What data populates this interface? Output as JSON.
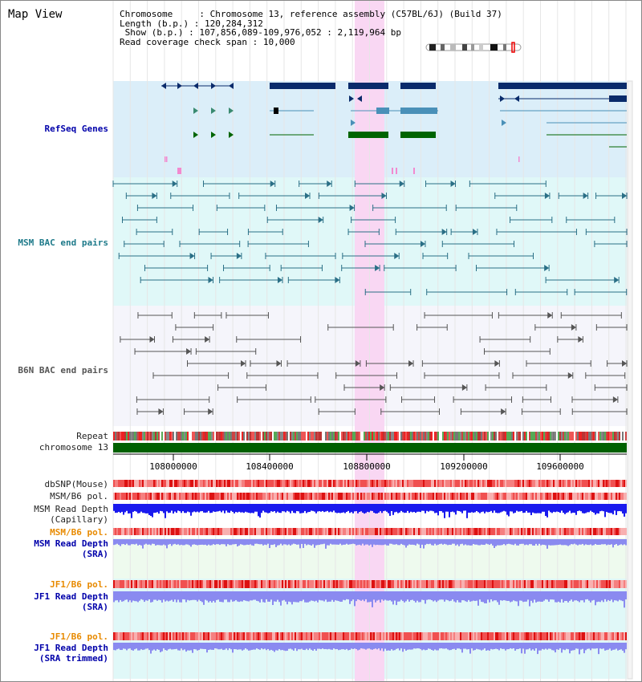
{
  "title": "Map View",
  "info": {
    "chromosome_key": "Chromosome    ",
    "chromosome_val": "Chromosome 13, reference assembly (C57BL/6J) (Build 37)",
    "length_key": "Length (b.p.)",
    "length_val": "120,284,312",
    "show_key": " Show (b.p.)",
    "show_val": "107,856,089-109,976,052 : 2,119,964 bp",
    "coverage_key": "Read coverage check span",
    "coverage_val": "10,000"
  },
  "tracks": {
    "refseq": "RefSeq Genes",
    "msm_bac": "MSM BAC end pairs",
    "b6n_bac": "B6N BAC end pairs",
    "repeat": "Repeat",
    "chromosome": "chromosome 13",
    "dbsnp": "dbSNP(Mouse)",
    "msm_b6_pol_1": "MSM/B6 pol.",
    "msm_depth_cap_1": "MSM Read Depth",
    "msm_depth_cap_2": "(Capillary)",
    "msm_b6_pol_2": "MSM/B6 pol.",
    "msm_depth_sra_1": "MSM Read Depth",
    "msm_depth_sra_2": "(SRA)",
    "jf1_b6_pol_1": "JF1/B6 pol.",
    "jf1_depth_sra_1": "JF1 Read Depth",
    "jf1_depth_sra_2": "(SRA)",
    "jf1_b6_pol_2": "JF1/B6 pol.",
    "jf1_depth_trim_1": "JF1 Read Depth",
    "jf1_depth_trim_2": "(SRA trimmed)"
  },
  "axis": {
    "ticks": [
      "108000000",
      "108400000",
      "108800000",
      "109200000",
      "109600000"
    ]
  },
  "colors": {
    "highlight": "#f9d7f3",
    "refseq_bg": "#dbeef9",
    "msm_bg": "#e0f8f8",
    "b6n_bg": "#f5f5fb",
    "refseq_dark": "#0a2b6b",
    "refseq_mid": "#4a90b8",
    "refseq_green": "#006400",
    "msm_line": "#2a6f86",
    "b6n_line": "#555555",
    "pol_red": "#ee2222",
    "depth_blue": "#1a1aee",
    "depth_light": "#8a8af0"
  }
}
